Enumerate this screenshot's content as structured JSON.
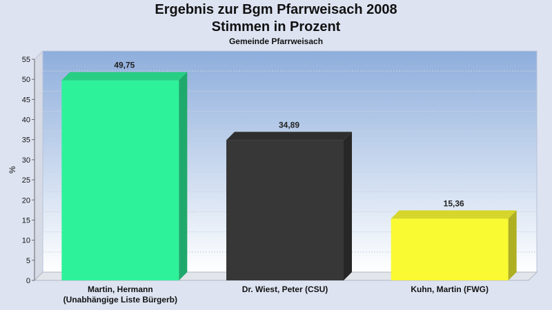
{
  "colors": {
    "background": "#dde3f1",
    "plot_top": "#8eaedc",
    "plot_bottom": "#ffffff",
    "axis": "#666666"
  },
  "chart_data": {
    "type": "bar",
    "title": "Ergebnis zur Bgm Pfarrweisach 2008",
    "subtitle": "Stimmen in Prozent",
    "caption": "Gemeinde Pfarrweisach",
    "xlabel": "",
    "ylabel": "%",
    "ylim": [
      0,
      55
    ],
    "yticks": [
      0,
      5,
      10,
      15,
      20,
      25,
      30,
      35,
      40,
      45,
      50,
      55
    ],
    "grid": true,
    "categories": [
      [
        "Martin, Hermann",
        "(Unabhängige Liste Bürgerb)"
      ],
      [
        "Dr. Wiest, Peter (CSU)"
      ],
      [
        "Kuhn, Martin (FWG)"
      ]
    ],
    "values": [
      49.75,
      34.89,
      15.36
    ],
    "value_labels": [
      "49,75",
      "34,89",
      "15,36"
    ],
    "bar_colors": [
      "#2ef29a",
      "#373737",
      "#fafa32"
    ]
  }
}
